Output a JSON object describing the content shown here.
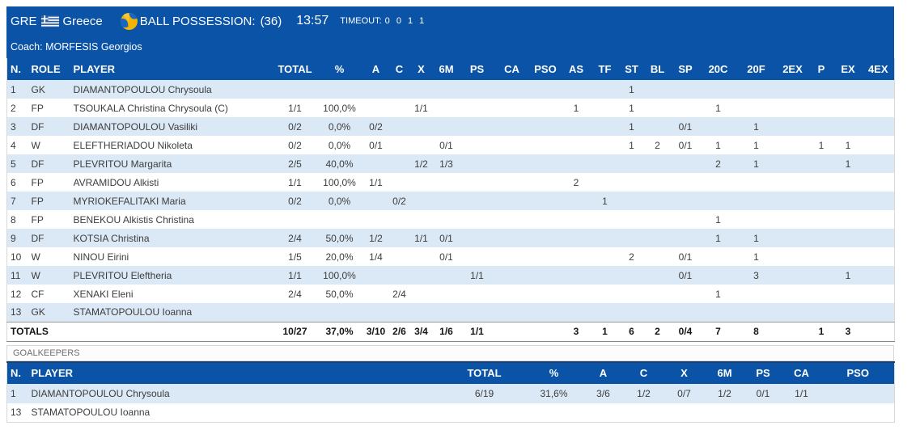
{
  "title_bar": {
    "team_code": "GRE",
    "team_name": "Greece",
    "possession_label": "BALL POSSESSION:",
    "possession_value": "(36)",
    "clock": "13:57",
    "timeout_label": "TIMEOUT:",
    "timeout_value": "0 0 1 1"
  },
  "coach_bar": {
    "label": "Coach:",
    "name": "MORFESIS Georgios"
  },
  "icons": {
    "flag": "greece-flag-icon",
    "ball": "water-polo-ball-icon"
  },
  "colors": {
    "bar_blue": "#0A53A6",
    "row_alt_blue": "#DBE8F5",
    "gk_header_top_navy": "#1C3E6E",
    "border_gray": "#D8D8D8",
    "flag_blue": "#2E5FA3",
    "ball_yellow": "#F5B301",
    "ball_blue": "#1767C0"
  },
  "players_table": {
    "columns": [
      "N.",
      "ROLE",
      "PLAYER",
      "TOTAL",
      "%",
      "A",
      "C",
      "X",
      "6M",
      "PS",
      "CA",
      "PSO",
      "AS",
      "TF",
      "ST",
      "BL",
      "SP",
      "20C",
      "20F",
      "2EX",
      "P",
      "EX",
      "4EX"
    ],
    "rows": [
      [
        "1",
        "GK",
        "DIAMANTOPOULOU Chrysoula",
        "",
        "",
        "",
        "",
        "",
        "",
        "",
        "",
        "",
        "",
        "",
        "1",
        "",
        "",
        "",
        "",
        "",
        "",
        "",
        ""
      ],
      [
        "2",
        "FP",
        "TSOUKALA Christina Chrysoula (C)",
        "1/1",
        "100,0%",
        "",
        "",
        "1/1",
        "",
        "",
        "",
        "",
        "1",
        "",
        "1",
        "",
        "",
        "1",
        "",
        "",
        "",
        "",
        ""
      ],
      [
        "3",
        "DF",
        "DIAMANTOPOULOU Vasiliki",
        "0/2",
        "0,0%",
        "0/2",
        "",
        "",
        "",
        "",
        "",
        "",
        "",
        "",
        "1",
        "",
        "0/1",
        "",
        "1",
        "",
        "",
        "",
        ""
      ],
      [
        "4",
        "W",
        "ELEFTHERIADOU Nikoleta",
        "0/2",
        "0,0%",
        "0/1",
        "",
        "",
        "0/1",
        "",
        "",
        "",
        "",
        "",
        "1",
        "2",
        "0/1",
        "1",
        "1",
        "",
        "1",
        "1",
        ""
      ],
      [
        "5",
        "DF",
        "PLEVRITOU Margarita",
        "2/5",
        "40,0%",
        "",
        "",
        "1/2",
        "1/3",
        "",
        "",
        "",
        "",
        "",
        "",
        "",
        "",
        "2",
        "1",
        "",
        "",
        "1",
        ""
      ],
      [
        "6",
        "FP",
        "AVRAMIDOU Alkisti",
        "1/1",
        "100,0%",
        "1/1",
        "",
        "",
        "",
        "",
        "",
        "",
        "2",
        "",
        "",
        "",
        "",
        "",
        "",
        "",
        "",
        "",
        ""
      ],
      [
        "7",
        "FP",
        "MYRIOKEFALITAKI Maria",
        "0/2",
        "0,0%",
        "",
        "0/2",
        "",
        "",
        "",
        "",
        "",
        "",
        "1",
        "",
        "",
        "",
        "",
        "",
        "",
        "",
        "",
        ""
      ],
      [
        "8",
        "FP",
        "BENEKOU Alkistis Christina",
        "",
        "",
        "",
        "",
        "",
        "",
        "",
        "",
        "",
        "",
        "",
        "",
        "",
        "",
        "1",
        "",
        "",
        "",
        "",
        ""
      ],
      [
        "9",
        "DF",
        "KOTSIA Christina",
        "2/4",
        "50,0%",
        "1/2",
        "",
        "1/1",
        "0/1",
        "",
        "",
        "",
        "",
        "",
        "",
        "",
        "",
        "1",
        "1",
        "",
        "",
        "",
        ""
      ],
      [
        "10",
        "W",
        "NINOU Eirini",
        "1/5",
        "20,0%",
        "1/4",
        "",
        "",
        "0/1",
        "",
        "",
        "",
        "",
        "",
        "2",
        "",
        "0/1",
        "",
        "1",
        "",
        "",
        "",
        ""
      ],
      [
        "11",
        "W",
        "PLEVRITOU Eleftheria",
        "1/1",
        "100,0%",
        "",
        "",
        "",
        "",
        "1/1",
        "",
        "",
        "",
        "",
        "",
        "",
        "0/1",
        "",
        "3",
        "",
        "",
        "1",
        ""
      ],
      [
        "12",
        "CF",
        "XENAKI Eleni",
        "2/4",
        "50,0%",
        "",
        "2/4",
        "",
        "",
        "",
        "",
        "",
        "",
        "",
        "",
        "",
        "",
        "1",
        "",
        "",
        "",
        "",
        ""
      ],
      [
        "13",
        "GK",
        "STAMATOPOULOU Ioanna",
        "",
        "",
        "",
        "",
        "",
        "",
        "",
        "",
        "",
        "",
        "",
        "",
        "",
        "",
        "",
        "",
        "",
        "",
        "",
        ""
      ]
    ],
    "totals_label": "TOTALS",
    "totals": [
      "10/27",
      "37,0%",
      "3/10",
      "2/6",
      "3/4",
      "1/6",
      "1/1",
      "",
      "",
      "3",
      "1",
      "6",
      "2",
      "0/4",
      "7",
      "8",
      "",
      "1",
      "3",
      ""
    ]
  },
  "goalkeepers": {
    "section_label": "GOALKEEPERS",
    "columns": [
      "N.",
      "PLAYER",
      "TOTAL",
      "%",
      "A",
      "C",
      "X",
      "6M",
      "PS",
      "CA",
      "PSO"
    ],
    "rows": [
      [
        "1",
        "DIAMANTOPOULOU Chrysoula",
        "6/19",
        "31,6%",
        "3/6",
        "1/2",
        "0/7",
        "1/2",
        "0/1",
        "1/1",
        ""
      ],
      [
        "13",
        "STAMATOPOULOU Ioanna",
        "",
        "",
        "",
        "",
        "",
        "",
        "",
        "",
        ""
      ]
    ]
  }
}
